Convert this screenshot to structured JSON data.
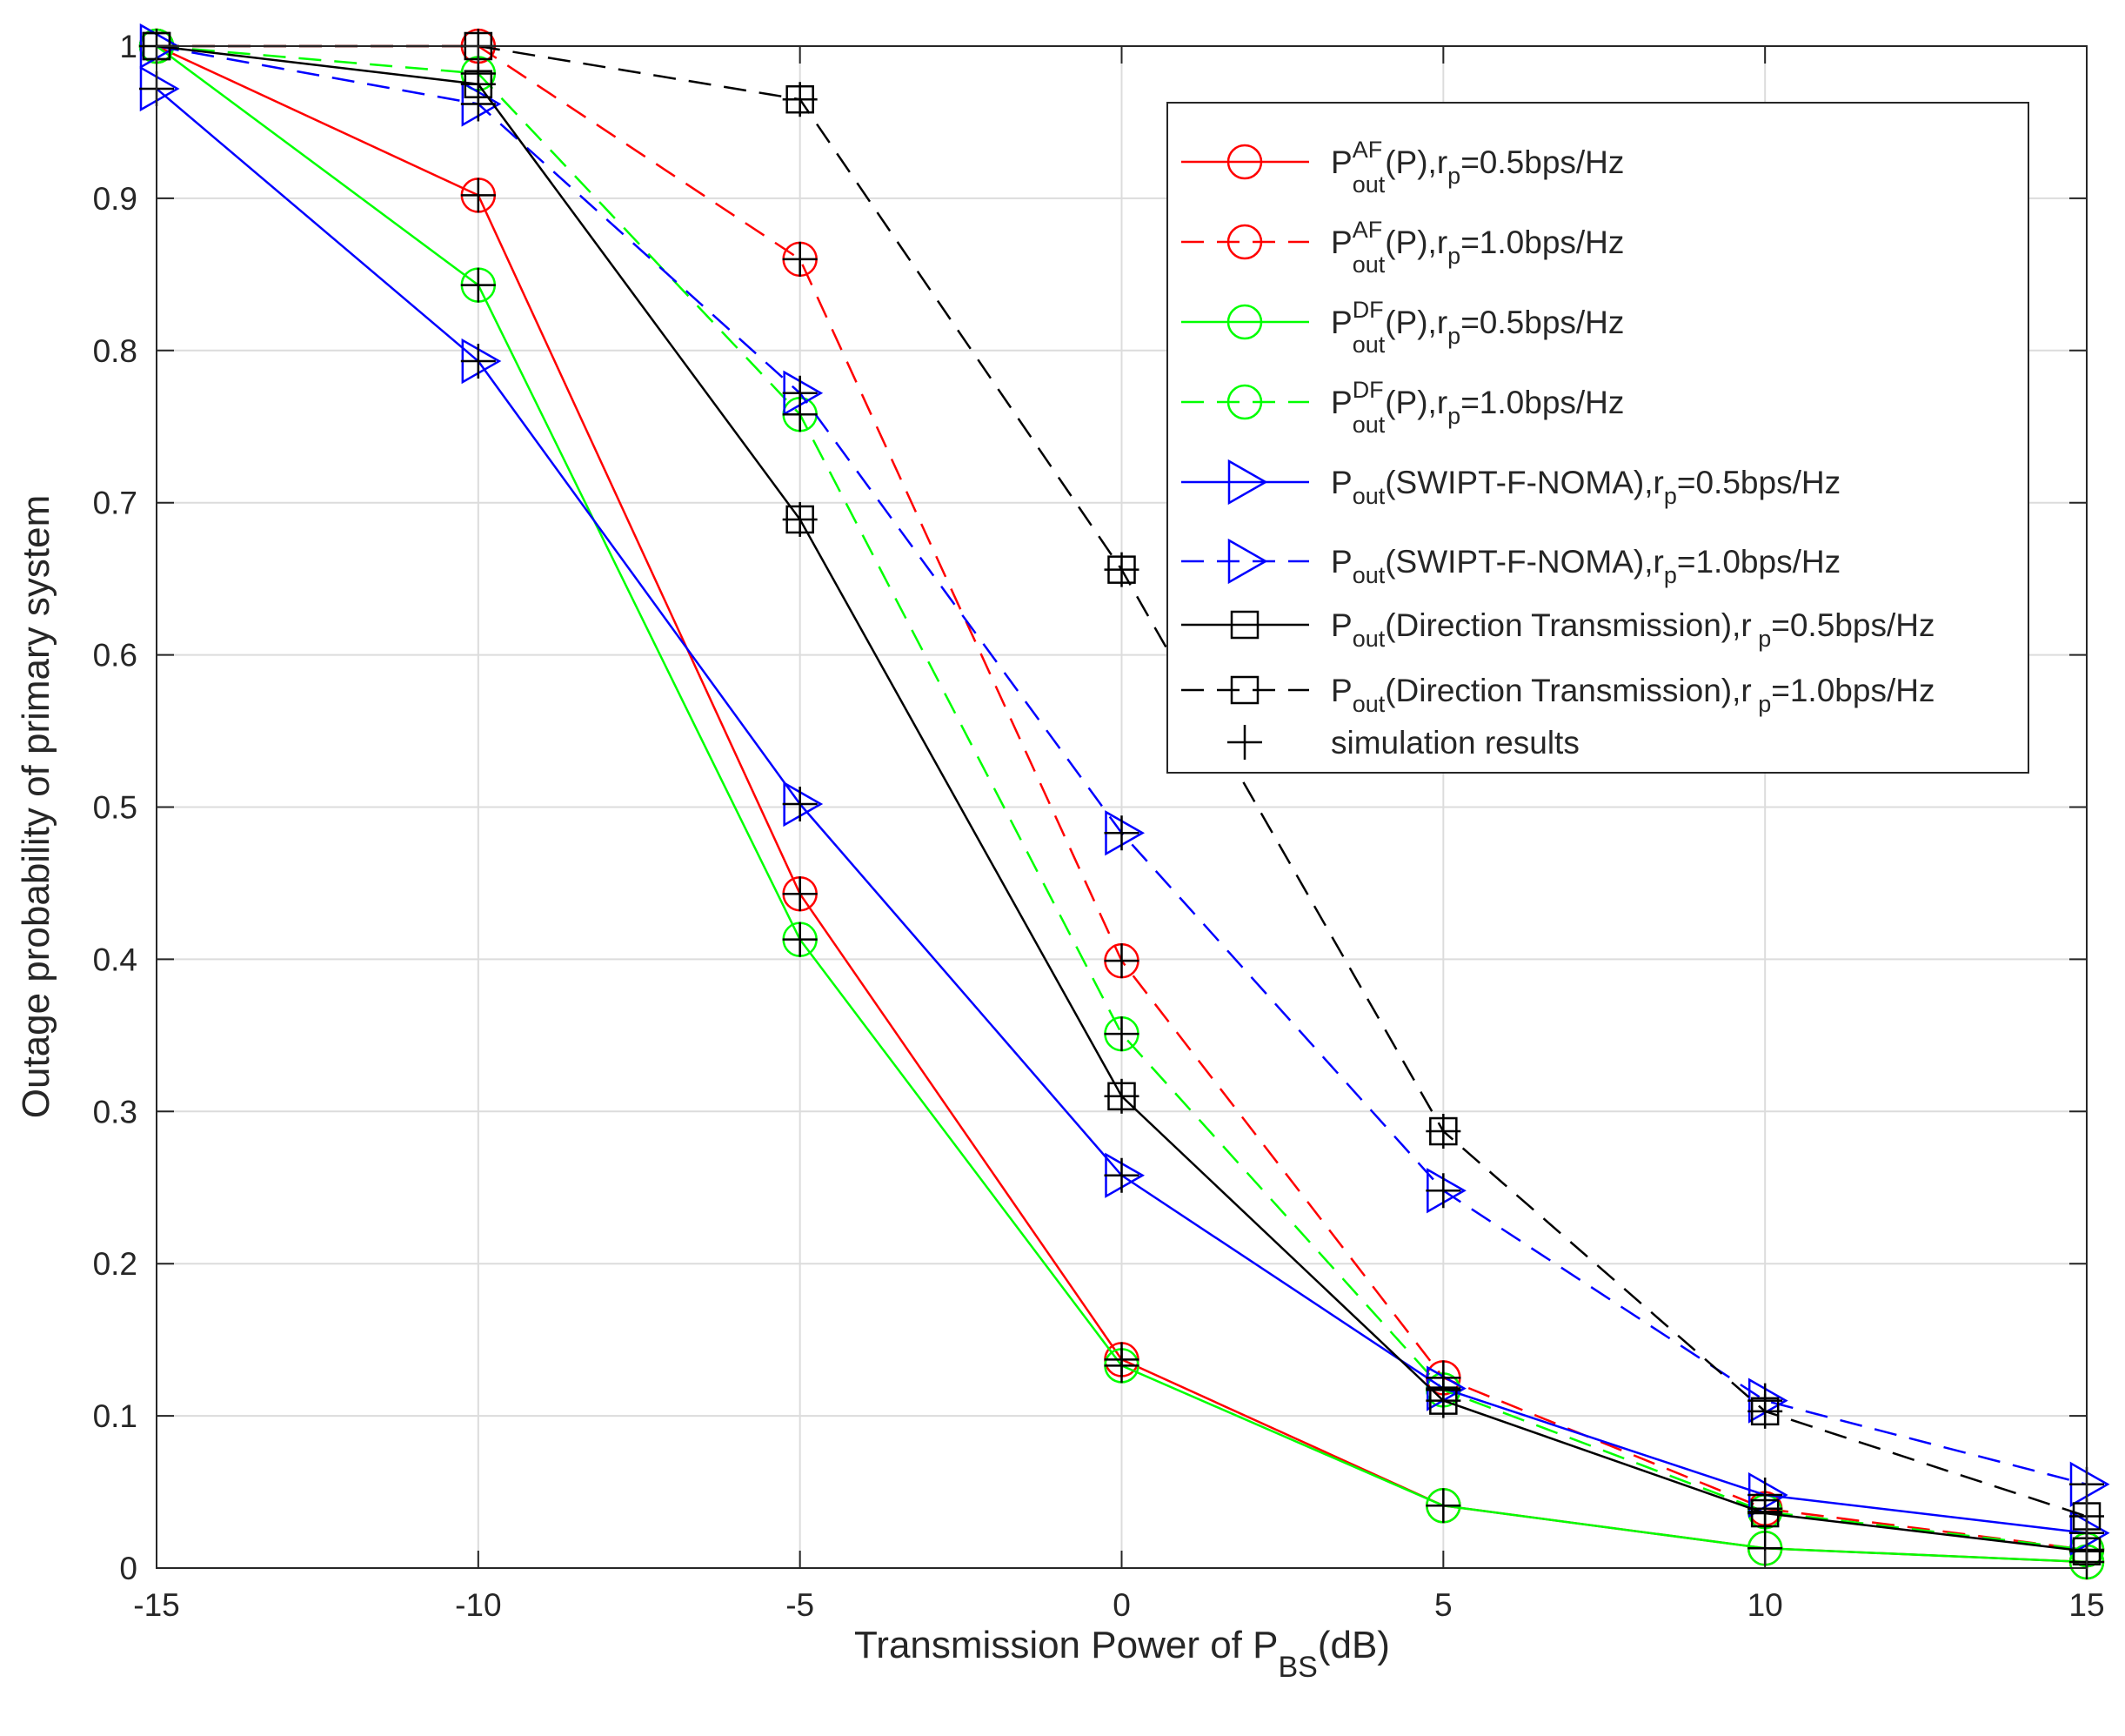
{
  "chart_data": {
    "type": "line",
    "title": "",
    "xlabel": {
      "main": "Transmission Power of P",
      "sub": "BS",
      "suffix": "(dB)"
    },
    "ylabel": "Outage probability of primary system",
    "x": [
      -15,
      -10,
      -5,
      0,
      5,
      10,
      15
    ],
    "xlim": [
      -15,
      15
    ],
    "ylim": [
      0,
      1
    ],
    "xticks": [
      "-15",
      "-10",
      "-5",
      "0",
      "5",
      "10",
      "15"
    ],
    "yticks": [
      "0",
      "0.1",
      "0.2",
      "0.3",
      "0.4",
      "0.5",
      "0.6",
      "0.7",
      "0.8",
      "0.9",
      "1"
    ],
    "grid": true,
    "legend_position": "top-right",
    "series": [
      {
        "name": "P_out^AF(P), r_p=0.5bps/Hz",
        "legend": {
          "base": "P",
          "sup": "AF",
          "sub": "out",
          "mid": "(P),r",
          "sub2": "p",
          "tail": "=0.5bps/Hz"
        },
        "color": "#ff0000",
        "dash": "solid",
        "marker": "circle",
        "values": [
          1.0,
          0.902,
          0.443,
          0.137,
          0.041,
          0.013,
          0.004
        ]
      },
      {
        "name": "P_out^AF(P), r_p=1.0bps/Hz",
        "legend": {
          "base": "P",
          "sup": "AF",
          "sub": "out",
          "mid": "(P),r",
          "sub2": "p",
          "tail": "=1.0bps/Hz"
        },
        "color": "#ff0000",
        "dash": "dashed",
        "marker": "circle",
        "values": [
          1.0,
          1.0,
          0.86,
          0.399,
          0.125,
          0.039,
          0.012
        ]
      },
      {
        "name": "P_out^DF(P), r_p=0.5bps/Hz",
        "legend": {
          "base": "P",
          "sup": "DF",
          "sub": "out",
          "mid": "(P),r",
          "sub2": "p",
          "tail": "=0.5bps/Hz"
        },
        "color": "#00ff00",
        "dash": "solid",
        "marker": "circle",
        "values": [
          1.0,
          0.843,
          0.413,
          0.133,
          0.041,
          0.013,
          0.004
        ]
      },
      {
        "name": "P_out^DF(P), r_p=1.0bps/Hz",
        "legend": {
          "base": "P",
          "sup": "DF",
          "sub": "out",
          "mid": "(P),r",
          "sub2": "p",
          "tail": "=1.0bps/Hz"
        },
        "color": "#00ff00",
        "dash": "dashed",
        "marker": "circle",
        "values": [
          1.0,
          0.982,
          0.758,
          0.351,
          0.117,
          0.037,
          0.012
        ]
      },
      {
        "name": "P_out(SWIPT-F-NOMA), r_p=0.5bps/Hz",
        "legend": {
          "base": "P",
          "sup": "",
          "sub": "out",
          "mid": "(SWIPT-F-NOMA),r",
          "sub2": "p",
          "tail": "=0.5bps/Hz"
        },
        "color": "#0000ff",
        "dash": "solid",
        "marker": "triangle-right",
        "values": [
          0.972,
          0.793,
          0.502,
          0.258,
          0.118,
          0.048,
          0.023
        ]
      },
      {
        "name": "P_out(SWIPT-F-NOMA), r_p=1.0bps/Hz",
        "legend": {
          "base": "P",
          "sup": "",
          "sub": "out",
          "mid": "(SWIPT-F-NOMA),r",
          "sub2": "p",
          "tail": "=1.0bps/Hz"
        },
        "color": "#0000ff",
        "dash": "dashed",
        "marker": "triangle-right",
        "values": [
          1.0,
          0.962,
          0.772,
          0.483,
          0.248,
          0.11,
          0.055
        ]
      },
      {
        "name": "P_out(Direction Transmission), r_p=0.5bps/Hz",
        "legend": {
          "base": "P",
          "sup": "",
          "sub": "out",
          "mid": "(Direction Transmission),r",
          "sub2": " p",
          "tail": "=0.5bps/Hz"
        },
        "color": "#000000",
        "dash": "solid",
        "marker": "square",
        "values": [
          1.0,
          0.975,
          0.689,
          0.31,
          0.11,
          0.036,
          0.011
        ]
      },
      {
        "name": "P_out(Direction Transmission), r_p=1.0bps/Hz",
        "legend": {
          "base": "P",
          "sup": "",
          "sub": "out",
          "mid": "(Direction Transmission),r",
          "sub2": " p",
          "tail": "=1.0bps/Hz"
        },
        "color": "#000000",
        "dash": "dashed",
        "marker": "square",
        "values": [
          1.0,
          1.0,
          0.965,
          0.656,
          0.287,
          0.103,
          0.034
        ]
      }
    ],
    "simulation": {
      "name": "simulation results",
      "color": "#000000",
      "marker": "plus",
      "points": [
        [
          -15,
          1.0
        ],
        [
          -10,
          0.902
        ],
        [
          -5,
          0.443
        ],
        [
          0,
          0.137
        ],
        [
          5,
          0.041
        ],
        [
          10,
          0.013
        ],
        [
          15,
          0.004
        ],
        [
          -10,
          1.0
        ],
        [
          -5,
          0.86
        ],
        [
          0,
          0.399
        ],
        [
          5,
          0.125
        ],
        [
          10,
          0.039
        ],
        [
          15,
          0.012
        ],
        [
          -10,
          0.843
        ],
        [
          -5,
          0.413
        ],
        [
          0,
          0.133
        ],
        [
          -10,
          0.982
        ],
        [
          -5,
          0.758
        ],
        [
          0,
          0.351
        ],
        [
          5,
          0.117
        ],
        [
          10,
          0.037
        ],
        [
          -15,
          0.972
        ],
        [
          -10,
          0.793
        ],
        [
          -5,
          0.502
        ],
        [
          0,
          0.258
        ],
        [
          5,
          0.118
        ],
        [
          10,
          0.048
        ],
        [
          15,
          0.023
        ],
        [
          -10,
          0.962
        ],
        [
          -5,
          0.772
        ],
        [
          0,
          0.483
        ],
        [
          5,
          0.248
        ],
        [
          10,
          0.11
        ],
        [
          15,
          0.055
        ],
        [
          -10,
          0.975
        ],
        [
          -5,
          0.689
        ],
        [
          0,
          0.31
        ],
        [
          5,
          0.11
        ],
        [
          10,
          0.036
        ],
        [
          15,
          0.011
        ],
        [
          -5,
          0.965
        ],
        [
          0,
          0.656
        ],
        [
          5,
          0.287
        ],
        [
          10,
          0.103
        ],
        [
          15,
          0.034
        ]
      ]
    }
  }
}
